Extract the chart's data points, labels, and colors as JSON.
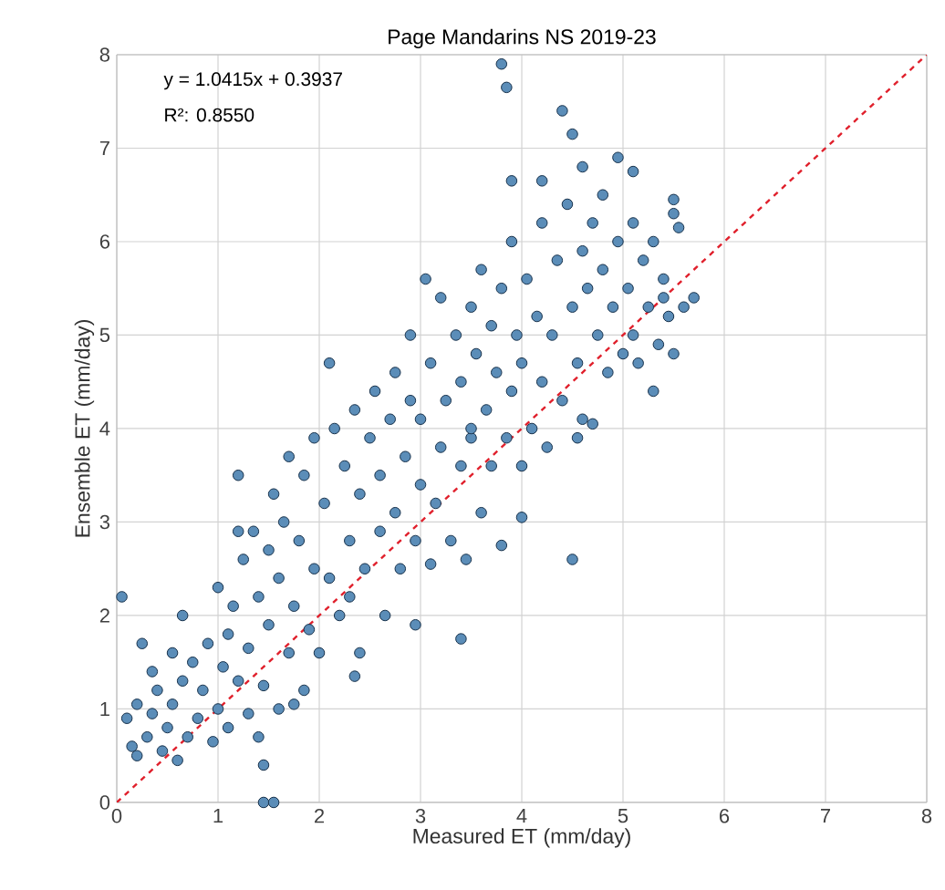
{
  "chart_data": {
    "type": "scatter",
    "title": "Page Mandarins NS 2019-23",
    "xlabel": "Measured ET (mm/day)",
    "ylabel": "Ensemble ET (mm/day)",
    "annotations": [
      "y = 1.0415x + 0.3937",
      "R²: 0.8550"
    ],
    "xlim": [
      0,
      8
    ],
    "ylim": [
      0,
      8
    ],
    "xticks": [
      0,
      1,
      2,
      3,
      4,
      5,
      6,
      7,
      8
    ],
    "yticks": [
      0,
      1,
      2,
      3,
      4,
      5,
      6,
      7,
      8
    ],
    "grid": true,
    "series": [
      {
        "marker": "circle",
        "color": "#5b8db8",
        "x": [
          3.8,
          3.85,
          4.4,
          4.5,
          4.95,
          5.1,
          5.5,
          5.55,
          4.6,
          4.2,
          3.9,
          0.05,
          1.45,
          1.55,
          1.45,
          4.5,
          3.4,
          2.95,
          4.0,
          1.2,
          0.25,
          0.65,
          2.35,
          5.3,
          5.6,
          5.7,
          0.1,
          0.15,
          0.2,
          0.3,
          0.35,
          0.4,
          0.45,
          0.5,
          0.55,
          0.6,
          0.65,
          0.7,
          0.75,
          0.8,
          0.85,
          0.9,
          0.95,
          1.0,
          1.0,
          1.05,
          0.35,
          0.55,
          0.2,
          1.1,
          1.1,
          1.15,
          1.2,
          1.25,
          1.3,
          1.3,
          1.35,
          1.4,
          1.45,
          1.5,
          1.5,
          1.55,
          1.6,
          1.6,
          1.65,
          1.7,
          1.7,
          1.75,
          1.8,
          1.85,
          1.85,
          1.9,
          1.95,
          1.95,
          1.75,
          1.4,
          1.2,
          2.0,
          2.05,
          2.1,
          2.15,
          2.2,
          2.25,
          2.3,
          2.35,
          2.4,
          2.4,
          2.45,
          2.5,
          2.55,
          2.6,
          2.6,
          2.65,
          2.7,
          2.75,
          2.75,
          2.8,
          2.85,
          2.9,
          2.9,
          2.95,
          3.0,
          3.05,
          2.3,
          2.1,
          3.0,
          3.1,
          3.1,
          3.15,
          3.2,
          3.2,
          3.25,
          3.3,
          3.35,
          3.4,
          3.4,
          3.45,
          3.5,
          3.5,
          3.55,
          3.6,
          3.6,
          3.65,
          3.7,
          3.7,
          3.75,
          3.8,
          3.8,
          3.85,
          3.9,
          3.9,
          3.95,
          3.5,
          4.0,
          4.0,
          4.05,
          4.1,
          4.15,
          4.2,
          4.2,
          4.25,
          4.3,
          4.35,
          4.4,
          4.45,
          4.5,
          4.55,
          4.6,
          4.6,
          4.65,
          4.7,
          4.7,
          4.75,
          4.8,
          4.85,
          4.9,
          4.95,
          4.55,
          4.8,
          5.0,
          5.05,
          5.1,
          5.1,
          5.15,
          5.2,
          5.25,
          5.3,
          5.35,
          5.4,
          5.45,
          5.5,
          5.5,
          5.4
        ],
        "values": [
          7.9,
          7.65,
          7.4,
          7.15,
          6.9,
          6.75,
          6.45,
          6.15,
          6.8,
          6.65,
          6.65,
          2.2,
          0.0,
          0.0,
          0.4,
          2.6,
          1.75,
          1.9,
          3.05,
          3.5,
          1.7,
          2.0,
          1.35,
          4.4,
          5.3,
          5.4,
          0.9,
          0.6,
          0.5,
          0.7,
          0.95,
          1.2,
          0.55,
          0.8,
          1.05,
          0.45,
          1.3,
          0.7,
          1.5,
          0.9,
          1.2,
          1.7,
          0.65,
          1.0,
          2.3,
          1.45,
          1.4,
          1.6,
          1.05,
          0.8,
          1.8,
          2.1,
          1.3,
          2.6,
          0.95,
          1.65,
          2.9,
          2.2,
          1.25,
          2.7,
          1.9,
          3.3,
          1.0,
          2.4,
          3.0,
          1.6,
          3.7,
          2.1,
          2.8,
          1.2,
          3.5,
          1.85,
          2.5,
          3.9,
          1.05,
          0.7,
          2.9,
          1.6,
          3.2,
          2.4,
          4.0,
          2.0,
          3.6,
          2.8,
          4.2,
          1.6,
          3.3,
          2.5,
          3.9,
          4.4,
          2.9,
          3.5,
          2.0,
          4.1,
          3.1,
          4.6,
          2.5,
          3.7,
          4.3,
          5.0,
          2.8,
          3.4,
          5.6,
          2.2,
          4.7,
          4.1,
          2.55,
          4.7,
          3.2,
          5.4,
          3.8,
          4.3,
          2.8,
          5.0,
          3.6,
          4.5,
          2.6,
          5.3,
          3.9,
          4.8,
          3.1,
          5.7,
          4.2,
          5.1,
          3.6,
          4.6,
          2.75,
          5.5,
          3.9,
          6.0,
          4.4,
          5.0,
          4.0,
          3.6,
          4.7,
          5.6,
          4.0,
          5.2,
          6.2,
          4.5,
          3.8,
          5.0,
          5.8,
          4.3,
          6.4,
          5.3,
          4.7,
          5.9,
          4.1,
          5.5,
          6.2,
          4.05,
          5.0,
          5.7,
          4.6,
          5.3,
          6.0,
          3.9,
          6.5,
          4.8,
          5.5,
          6.2,
          5.0,
          4.7,
          5.8,
          5.3,
          6.0,
          4.9,
          5.6,
          5.2,
          6.3,
          4.8,
          5.4
        ]
      },
      {
        "type": "line",
        "marker": "none",
        "color": "#e0202c",
        "line_style": "dashed",
        "x": [
          0,
          8
        ],
        "values": [
          0,
          8
        ]
      }
    ]
  }
}
